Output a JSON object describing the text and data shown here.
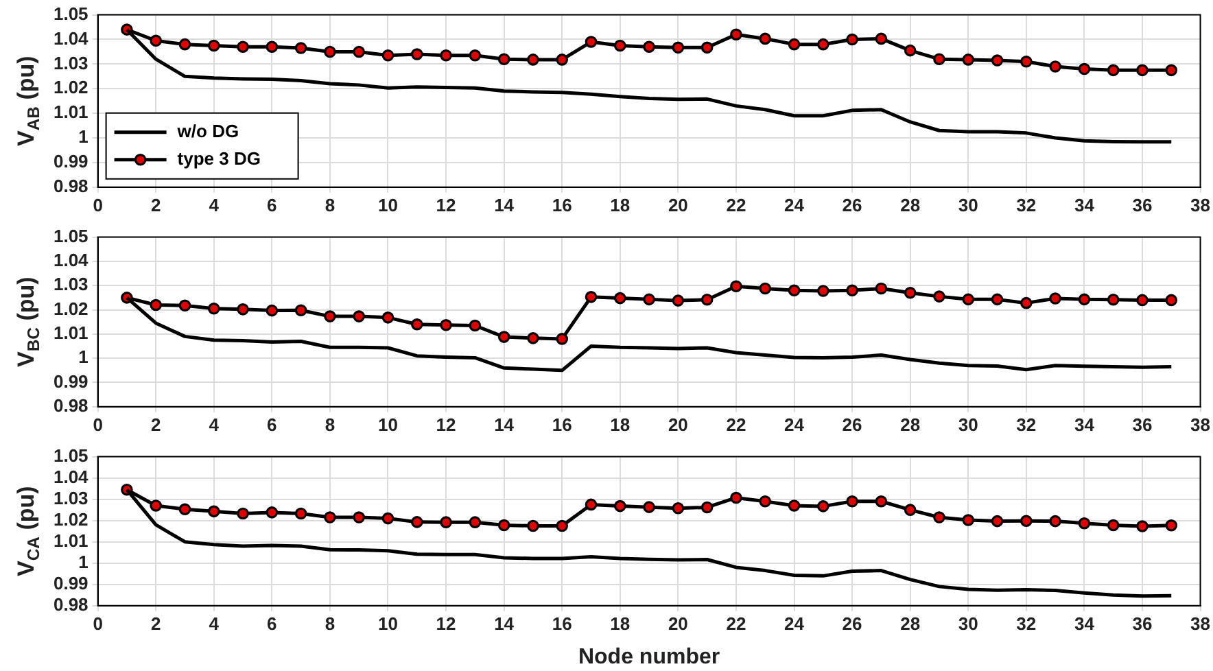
{
  "chart_data": [
    {
      "type": "line",
      "ylabel": "V$_{AB}$ (pu)",
      "x": [
        1,
        2,
        3,
        4,
        5,
        6,
        7,
        8,
        9,
        10,
        11,
        12,
        13,
        14,
        15,
        16,
        17,
        18,
        19,
        20,
        21,
        22,
        23,
        24,
        25,
        26,
        27,
        28,
        29,
        30,
        31,
        32,
        33,
        34,
        35,
        36,
        37
      ],
      "xlim": [
        0,
        38
      ],
      "xticks": [
        0,
        2,
        4,
        6,
        8,
        10,
        12,
        14,
        16,
        18,
        20,
        22,
        24,
        26,
        28,
        30,
        32,
        34,
        36,
        38
      ],
      "ylim": [
        0.98,
        1.05
      ],
      "yticks": [
        0.98,
        0.99,
        1,
        1.01,
        1.02,
        1.03,
        1.04,
        1.05
      ],
      "grid": true,
      "legend": "bottom left",
      "series": [
        {
          "name": "w/o DG",
          "color": "#000000",
          "marker": "none",
          "values": [
            1.044,
            1.032,
            1.025,
            1.0243,
            1.024,
            1.0238,
            1.0233,
            1.022,
            1.0215,
            1.0203,
            1.0207,
            1.0205,
            1.0203,
            1.019,
            1.0187,
            1.0185,
            1.0178,
            1.0168,
            1.016,
            1.0157,
            1.0158,
            1.013,
            1.0115,
            1.009,
            1.009,
            1.0112,
            1.0115,
            1.0065,
            1.003,
            1.0025,
            1.0025,
            1.002,
            1.0,
            0.9988,
            0.9985,
            0.9984,
            0.9984
          ]
        },
        {
          "name": "type 3 DG",
          "color": "#000000",
          "marker": "circle",
          "values": [
            1.044,
            1.0395,
            1.038,
            1.0375,
            1.037,
            1.037,
            1.0365,
            1.035,
            1.035,
            1.0335,
            1.034,
            1.0335,
            1.0335,
            1.032,
            1.0318,
            1.0318,
            1.039,
            1.0375,
            1.037,
            1.0367,
            1.0367,
            1.042,
            1.0403,
            1.038,
            1.038,
            1.04,
            1.0403,
            1.0355,
            1.032,
            1.0318,
            1.0315,
            1.031,
            1.029,
            1.028,
            1.0275,
            1.0275,
            1.0275
          ]
        }
      ]
    },
    {
      "type": "line",
      "ylabel": "V$_{BC}$ (pu)",
      "x": [
        1,
        2,
        3,
        4,
        5,
        6,
        7,
        8,
        9,
        10,
        11,
        12,
        13,
        14,
        15,
        16,
        17,
        18,
        19,
        20,
        21,
        22,
        23,
        24,
        25,
        26,
        27,
        28,
        29,
        30,
        31,
        32,
        33,
        34,
        35,
        36,
        37
      ],
      "xlim": [
        0,
        38
      ],
      "xticks": [
        0,
        2,
        4,
        6,
        8,
        10,
        12,
        14,
        16,
        18,
        20,
        22,
        24,
        26,
        28,
        30,
        32,
        34,
        36,
        38
      ],
      "ylim": [
        0.98,
        1.05
      ],
      "yticks": [
        0.98,
        0.99,
        1,
        1.01,
        1.02,
        1.03,
        1.04,
        1.05
      ],
      "grid": true,
      "series": [
        {
          "color": "#000000",
          "marker": "none",
          "values": [
            1.025,
            1.0145,
            1.009,
            1.0075,
            1.0073,
            1.0067,
            1.007,
            1.0045,
            1.0045,
            1.0043,
            1.001,
            1.0005,
            1.0002,
            0.996,
            0.9955,
            0.995,
            1.005,
            1.0045,
            1.0043,
            1.004,
            1.0043,
            1.0023,
            1.0013,
            1.0003,
            1.0002,
            1.0005,
            1.0013,
            0.9995,
            0.998,
            0.997,
            0.9968,
            0.9953,
            0.997,
            0.9967,
            0.9965,
            0.9963,
            0.9965
          ]
        },
        {
          "color": "#000000",
          "marker": "circle",
          "values": [
            1.025,
            1.022,
            1.0218,
            1.0205,
            1.0202,
            1.0197,
            1.0198,
            1.0173,
            1.0173,
            1.0168,
            1.014,
            1.0137,
            1.0135,
            1.0088,
            1.0083,
            1.008,
            1.0253,
            1.0248,
            1.0243,
            1.0238,
            1.0242,
            1.0297,
            1.0288,
            1.028,
            1.0278,
            1.028,
            1.0288,
            1.027,
            1.0255,
            1.0243,
            1.0243,
            1.0228,
            1.0247,
            1.0243,
            1.0242,
            1.024,
            1.024
          ]
        }
      ]
    },
    {
      "type": "line",
      "ylabel": "V$_{CA}$ (pu)",
      "xlabel": "Node number",
      "x": [
        1,
        2,
        3,
        4,
        5,
        6,
        7,
        8,
        9,
        10,
        11,
        12,
        13,
        14,
        15,
        16,
        17,
        18,
        19,
        20,
        21,
        22,
        23,
        24,
        25,
        26,
        27,
        28,
        29,
        30,
        31,
        32,
        33,
        34,
        35,
        36,
        37
      ],
      "xlim": [
        0,
        38
      ],
      "xticks": [
        0,
        2,
        4,
        6,
        8,
        10,
        12,
        14,
        16,
        18,
        20,
        22,
        24,
        26,
        28,
        30,
        32,
        34,
        36,
        38
      ],
      "ylim": [
        0.98,
        1.05
      ],
      "yticks": [
        0.98,
        0.99,
        1,
        1.01,
        1.02,
        1.03,
        1.04,
        1.05
      ],
      "grid": true,
      "series": [
        {
          "color": "#000000",
          "marker": "none",
          "values": [
            1.0345,
            1.018,
            1.01,
            1.0087,
            1.008,
            1.0083,
            1.008,
            1.0063,
            1.0062,
            1.0058,
            1.0042,
            1.004,
            1.004,
            1.0025,
            1.0022,
            1.0022,
            1.003,
            1.0022,
            1.0018,
            1.0015,
            1.0017,
            0.998,
            0.9965,
            0.9943,
            0.994,
            0.9962,
            0.9965,
            0.9923,
            0.989,
            0.9877,
            0.9873,
            0.9875,
            0.9872,
            0.986,
            0.985,
            0.9845,
            0.9847
          ]
        },
        {
          "color": "#000000",
          "marker": "circle",
          "values": [
            1.0345,
            1.027,
            1.0253,
            1.0243,
            1.0233,
            1.0238,
            1.0233,
            1.0215,
            1.0215,
            1.021,
            1.0193,
            1.0192,
            1.0192,
            1.0178,
            1.0175,
            1.0175,
            1.0275,
            1.0268,
            1.0263,
            1.0258,
            1.0262,
            1.0307,
            1.029,
            1.027,
            1.0267,
            1.029,
            1.029,
            1.025,
            1.0215,
            1.0202,
            1.0197,
            1.0198,
            1.0197,
            1.0187,
            1.0178,
            1.0173,
            1.0177
          ]
        }
      ]
    }
  ]
}
